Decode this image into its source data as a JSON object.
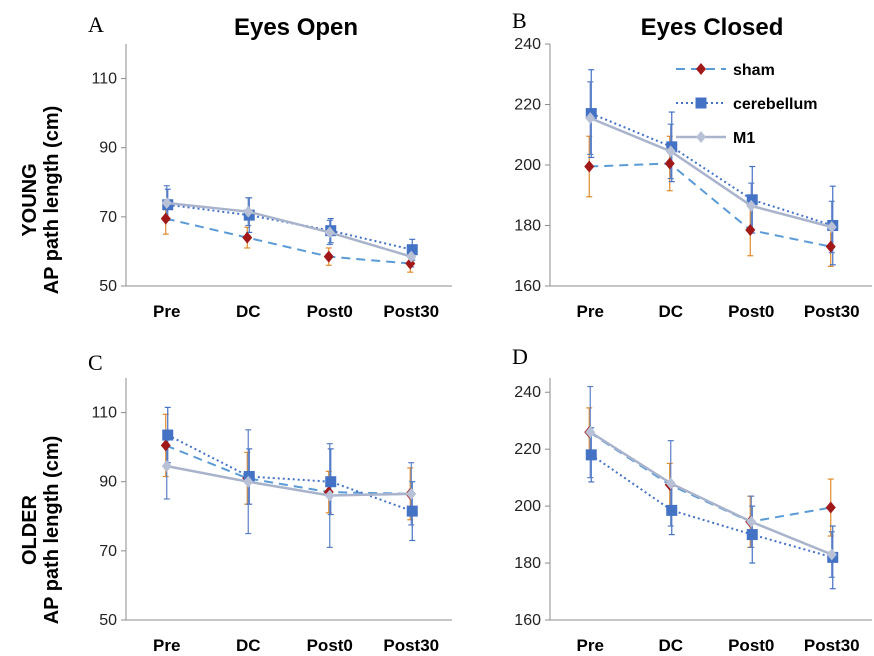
{
  "colors": {
    "sham": "#5b9bd5",
    "sham_marker": "#a01818",
    "sham_err": "#e08a2a",
    "cerebellum": "#4472c4",
    "cerebellum_marker": "#4472c4",
    "cerebellum_err": "#4472c4",
    "m1": "#a9b4cc",
    "m1_marker": "#b8c1d6",
    "m1_err": "#5b7fc4"
  },
  "row_labels": {
    "young_group": "YOUNG",
    "young_measure": "AP path length (cm)",
    "older_group": "OLDER",
    "older_measure": "AP path length (cm)"
  },
  "chart_data": [
    {
      "panel": "A",
      "title": "Eyes Open",
      "type": "line",
      "categories": [
        "Pre",
        "DC",
        "Post0",
        "Post30"
      ],
      "ylim": [
        50,
        120
      ],
      "yticks": [
        50,
        70,
        90,
        110
      ],
      "legend": false,
      "series": [
        {
          "name": "sham",
          "values": [
            69.5,
            64,
            58.5,
            56.5
          ],
          "err": [
            4.5,
            3,
            2.5,
            2.5
          ]
        },
        {
          "name": "cerebellum",
          "values": [
            73.5,
            70.5,
            66,
            60.5
          ],
          "err": [
            4.5,
            5,
            3.5,
            3
          ]
        },
        {
          "name": "M1",
          "values": [
            74,
            71.5,
            65.5,
            58.5
          ],
          "err": [
            5,
            4,
            3.5,
            3
          ]
        }
      ]
    },
    {
      "panel": "B",
      "title": "Eyes Closed",
      "type": "line",
      "categories": [
        "Pre",
        "DC",
        "Post0",
        "Post30"
      ],
      "ylim": [
        160,
        240
      ],
      "yticks": [
        160,
        180,
        200,
        220,
        240
      ],
      "legend": true,
      "legend_position": "top-right",
      "series": [
        {
          "name": "sham",
          "values": [
            199.5,
            200.5,
            178.5,
            173
          ],
          "err": [
            10,
            9,
            8.5,
            6.5
          ]
        },
        {
          "name": "cerebellum",
          "values": [
            217,
            206,
            188.5,
            180
          ],
          "err": [
            14.5,
            11.5,
            11,
            13
          ]
        },
        {
          "name": "M1",
          "values": [
            215.5,
            204.5,
            186.5,
            179.5
          ],
          "err": [
            12,
            9,
            7.5,
            8.5
          ]
        }
      ]
    },
    {
      "panel": "C",
      "title": "",
      "type": "line",
      "categories": [
        "Pre",
        "DC",
        "Post0",
        "Post30"
      ],
      "ylim": [
        50,
        120
      ],
      "yticks": [
        50,
        70,
        90,
        110
      ],
      "legend": false,
      "series": [
        {
          "name": "sham",
          "values": [
            100.5,
            91,
            87,
            86.5
          ],
          "err": [
            9,
            7.5,
            6,
            7.5
          ]
        },
        {
          "name": "cerebellum",
          "values": [
            103.5,
            91.5,
            90,
            81.5
          ],
          "err": [
            8,
            8,
            9.5,
            8.5
          ]
        },
        {
          "name": "M1",
          "values": [
            94.5,
            90,
            86,
            86.5
          ],
          "err": [
            9.5,
            15,
            15,
            9
          ]
        }
      ]
    },
    {
      "panel": "D",
      "title": "",
      "type": "line",
      "categories": [
        "Pre",
        "DC",
        "Post0",
        "Post30"
      ],
      "ylim": [
        160,
        245
      ],
      "yticks": [
        160,
        180,
        200,
        220,
        240
      ],
      "legend": false,
      "series": [
        {
          "name": "sham",
          "values": [
            226,
            207.5,
            194.5,
            199.5
          ],
          "err": [
            8.5,
            7.5,
            9,
            10
          ]
        },
        {
          "name": "cerebellum",
          "values": [
            218,
            198.5,
            190,
            182
          ],
          "err": [
            9.5,
            8.5,
            10,
            11
          ]
        },
        {
          "name": "M1",
          "values": [
            226,
            208,
            194.5,
            183
          ],
          "err": [
            16,
            15,
            9,
            8
          ]
        }
      ]
    }
  ]
}
